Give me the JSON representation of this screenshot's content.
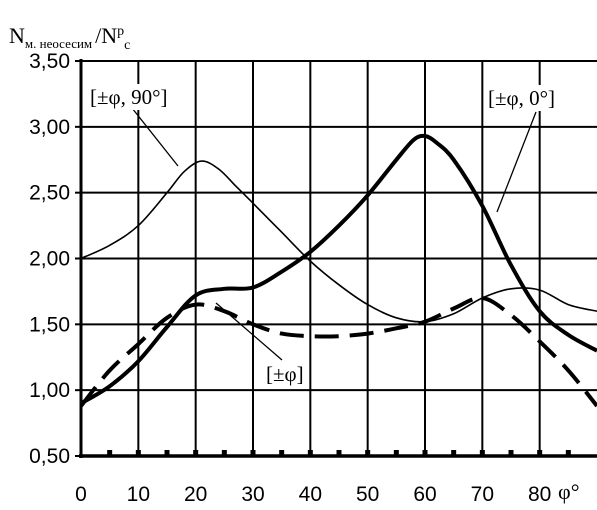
{
  "chart_data": {
    "type": "line",
    "ylabel": {
      "main": "N",
      "sub": "м. неосесим",
      "slash": "/N",
      "sup": "p",
      "sub2": "c"
    },
    "xlabel": "φ°",
    "xlim": [
      0,
      90
    ],
    "ylim": [
      0.5,
      3.5
    ],
    "grid": true,
    "x_ticks": [
      0,
      10,
      20,
      30,
      40,
      50,
      60,
      70,
      80
    ],
    "x_tick_labels": [
      "0",
      "10",
      "20",
      "30",
      "40",
      "50",
      "60",
      "70",
      "80"
    ],
    "y_ticks": [
      0.5,
      1.0,
      1.5,
      2.0,
      2.5,
      3.0,
      3.5
    ],
    "y_tick_labels": [
      "0,50",
      "1,00",
      "1,50",
      "2,00",
      "2,50",
      "3,00",
      "3,50"
    ],
    "series": [
      {
        "name": "[±φ, 90°]",
        "style": "thin",
        "color": "#000000",
        "x": [
          0,
          5,
          10,
          15,
          18,
          21,
          24,
          27,
          30,
          35,
          40,
          45,
          50,
          55,
          60,
          65,
          70,
          75,
          80,
          85,
          90
        ],
        "y": [
          2.0,
          2.1,
          2.25,
          2.5,
          2.66,
          2.74,
          2.68,
          2.55,
          2.42,
          2.2,
          1.98,
          1.8,
          1.65,
          1.55,
          1.52,
          1.58,
          1.7,
          1.77,
          1.76,
          1.65,
          1.6
        ]
      },
      {
        "name": "[±φ, 0°]",
        "style": "thick",
        "color": "#000000",
        "x": [
          0,
          5,
          10,
          15,
          20,
          25,
          30,
          35,
          40,
          45,
          50,
          55,
          58,
          60,
          62,
          65,
          70,
          75,
          80,
          85,
          90
        ],
        "y": [
          0.9,
          1.03,
          1.22,
          1.48,
          1.72,
          1.77,
          1.78,
          1.9,
          2.05,
          2.25,
          2.48,
          2.75,
          2.9,
          2.93,
          2.88,
          2.75,
          2.4,
          1.95,
          1.6,
          1.42,
          1.3
        ]
      },
      {
        "name": "[±φ]",
        "style": "dashed",
        "color": "#000000",
        "x": [
          0,
          5,
          10,
          15,
          20,
          25,
          30,
          35,
          40,
          45,
          50,
          55,
          60,
          65,
          70,
          75,
          80,
          85,
          90
        ],
        "y": [
          0.88,
          1.15,
          1.35,
          1.55,
          1.65,
          1.6,
          1.5,
          1.43,
          1.41,
          1.41,
          1.43,
          1.47,
          1.52,
          1.62,
          1.7,
          1.57,
          1.37,
          1.15,
          0.88
        ]
      }
    ]
  }
}
